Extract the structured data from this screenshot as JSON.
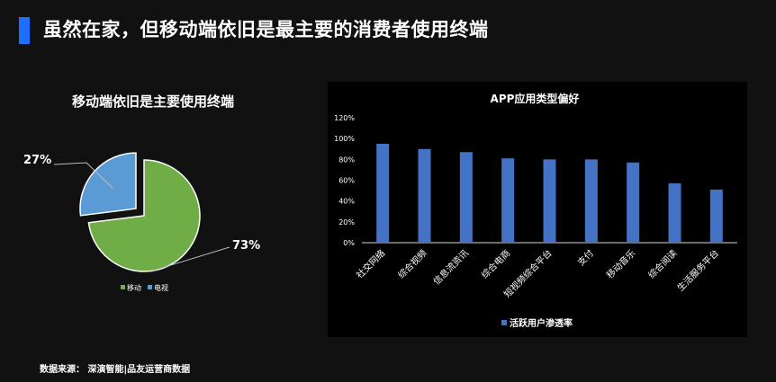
{
  "header": {
    "title": "虽然在家，但移动端依旧是最主要的消费者使用终端"
  },
  "footer": {
    "source": "数据来源：  深演智能|品友运营商数据"
  },
  "colors": {
    "accent": "#1f6fff",
    "pie_mobile": "#70ad47",
    "pie_tv": "#5b9bd5",
    "bar": "#4472c4"
  },
  "chart_data": [
    {
      "type": "pie",
      "title": "移动端依旧是主要使用终端",
      "slices": [
        {
          "name": "移动",
          "value": 73,
          "label": "73%",
          "color": "#70ad47"
        },
        {
          "name": "电视",
          "value": 27,
          "label": "27%",
          "color": "#5b9bd5",
          "exploded": true
        }
      ],
      "legend": {
        "position": "bottom",
        "entries": [
          "移动",
          "电视"
        ]
      }
    },
    {
      "type": "bar",
      "title": "APP应用类型偏好",
      "categories": [
        "社交网络",
        "综合视频",
        "信息流资讯",
        "综合电商",
        "短视频综合平台",
        "支付",
        "移动音乐",
        "综合阅读",
        "生活服务平台"
      ],
      "series": [
        {
          "name": "活跃用户渗透率",
          "values": [
            95,
            90,
            87,
            81,
            80,
            80,
            77,
            57,
            51
          ]
        }
      ],
      "ylim": [
        0,
        120
      ],
      "yticks": [
        "0%",
        "20%",
        "40%",
        "60%",
        "80%",
        "100%",
        "120%"
      ],
      "grid": false,
      "legend": {
        "position": "bottom"
      }
    }
  ]
}
